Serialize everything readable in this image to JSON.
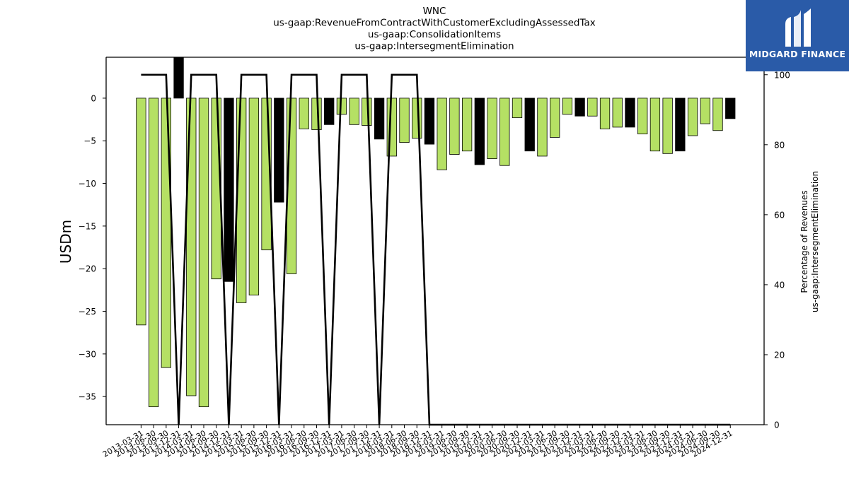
{
  "chart_data": {
    "type": "bar",
    "title_lines": [
      "WNC",
      "us-gaap:RevenueFromContractWithCustomerExcludingAssessedTax",
      "us-gaap:ConsolidationItems",
      "us-gaap:IntersegmentElimination"
    ],
    "ylabel": "USDm",
    "ylabel_right_lines": [
      "Percentage of Revenues",
      "us-gaap:IntersegmentElimination"
    ],
    "ylim": [
      -38.3,
      4.8
    ],
    "ylim_right": [
      0,
      105
    ],
    "yticks": [
      0,
      -5,
      -10,
      -15,
      -20,
      -25,
      -30,
      -35
    ],
    "yticks_right": [
      0,
      20,
      40,
      60,
      80,
      100
    ],
    "categories": [
      "2013-03-31",
      "2013-06-30",
      "2013-09-30",
      "2013-12-31",
      "2014-03-31",
      "2014-06-30",
      "2014-09-30",
      "2014-12-31",
      "2015-03-31",
      "2015-06-30",
      "2015-09-30",
      "2015-12-31",
      "2016-03-31",
      "2016-06-30",
      "2016-09-30",
      "2016-12-31",
      "2017-03-31",
      "2017-06-30",
      "2017-09-30",
      "2017-12-31",
      "2018-03-31",
      "2018-06-30",
      "2018-09-30",
      "2018-12-31",
      "2019-03-31",
      "2019-06-30",
      "2019-09-30",
      "2019-12-31",
      "2020-03-31",
      "2020-06-30",
      "2020-09-30",
      "2020-12-31",
      "2021-03-31",
      "2021-06-30",
      "2021-09-30",
      "2021-12-31",
      "2022-03-31",
      "2022-06-30",
      "2022-09-30",
      "2022-12-31",
      "2023-03-31",
      "2023-06-30",
      "2023-09-30",
      "2023-12-31",
      "2024-03-31",
      "2024-06-30",
      "2024-09-30",
      "2024-12-31"
    ],
    "values": [
      -26.6,
      -36.2,
      -31.6,
      4.8,
      -34.9,
      -36.2,
      -21.2,
      -21.5,
      -24.0,
      -23.1,
      -17.8,
      -12.2,
      -20.6,
      -3.6,
      -3.7,
      -3.1,
      -1.9,
      -3.1,
      -3.2,
      -4.8,
      -6.8,
      -5.2,
      -4.7,
      -5.4,
      -8.4,
      -6.6,
      -6.2,
      -7.8,
      -7.1,
      -7.9,
      -2.3,
      -6.2,
      -6.8,
      -4.6,
      -1.9,
      -2.1,
      -2.1,
      -3.6,
      -3.4,
      -3.4,
      -4.2,
      -6.2,
      -6.5,
      -6.2,
      -4.4,
      -3.0,
      -3.8,
      -2.4
    ],
    "bar_colors": [
      "#b5e064",
      "#b5e064",
      "#b5e064",
      "#000000",
      "#b5e064",
      "#b5e064",
      "#b5e064",
      "#000000",
      "#b5e064",
      "#b5e064",
      "#b5e064",
      "#000000",
      "#b5e064",
      "#b5e064",
      "#b5e064",
      "#000000",
      "#b5e064",
      "#b5e064",
      "#b5e064",
      "#000000",
      "#b5e064",
      "#b5e064",
      "#b5e064",
      "#000000",
      "#b5e064",
      "#b5e064",
      "#b5e064",
      "#000000",
      "#b5e064",
      "#b5e064",
      "#b5e064",
      "#000000",
      "#b5e064",
      "#b5e064",
      "#b5e064",
      "#000000",
      "#b5e064",
      "#b5e064",
      "#b5e064",
      "#000000",
      "#b5e064",
      "#b5e064",
      "#b5e064",
      "#000000",
      "#b5e064",
      "#b5e064",
      "#b5e064",
      "#000000"
    ],
    "line_values": [
      100,
      100,
      100,
      0,
      100,
      100,
      100,
      0,
      100,
      100,
      100,
      0,
      100,
      100,
      100,
      0,
      100,
      100,
      100,
      0,
      100,
      100,
      100,
      0,
      0,
      0,
      0,
      0,
      0,
      0,
      0,
      0,
      0,
      0,
      0,
      0,
      0,
      0,
      0,
      0,
      0,
      0,
      0,
      0,
      0,
      0,
      0,
      0
    ],
    "colors": {
      "positive_bar": "#b5e064",
      "q4_bar": "#000000",
      "line": "#000000"
    }
  },
  "logo": {
    "text": "MIDGARD FINANCE",
    "background": "#2a5ba8"
  }
}
